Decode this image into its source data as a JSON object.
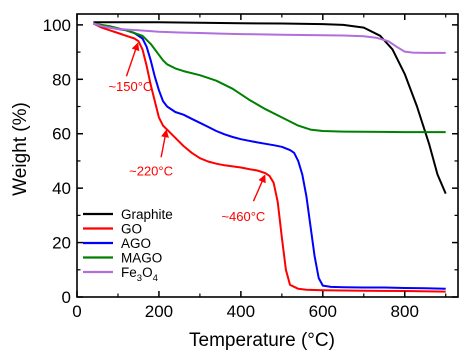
{
  "chart_data": {
    "type": "line",
    "xlabel": "Temperature (°C)",
    "ylabel": "Weight (%)",
    "xlim": [
      0,
      930
    ],
    "ylim": [
      0,
      104
    ],
    "xticks": [
      0,
      200,
      400,
      600,
      800
    ],
    "yticks": [
      0,
      20,
      40,
      60,
      80,
      100
    ],
    "grid": false,
    "legend_position": "bottom-left",
    "series": [
      {
        "name": "Graphite",
        "name_base": "Graphite",
        "name_sub": "",
        "name_tail": "",
        "color": "#000000",
        "x": [
          40,
          100,
          200,
          300,
          400,
          500,
          600,
          650,
          700,
          740,
          770,
          800,
          830,
          860,
          880,
          900
        ],
        "y": [
          101,
          101,
          101,
          100.8,
          100.6,
          100.5,
          100.3,
          100,
          99,
          96,
          91,
          82,
          70,
          56,
          45,
          38
        ]
      },
      {
        "name": "GO",
        "name_base": "GO",
        "name_sub": "",
        "name_tail": "",
        "color": "#ff0000",
        "x": [
          40,
          60,
          80,
          100,
          120,
          140,
          150,
          160,
          170,
          180,
          190,
          200,
          210,
          220,
          240,
          260,
          280,
          300,
          320,
          340,
          360,
          380,
          400,
          420,
          440,
          460,
          470,
          480,
          490,
          500,
          510,
          520,
          540,
          560,
          600,
          700,
          800,
          900
        ],
        "y": [
          100.5,
          99,
          98,
          97,
          96,
          95,
          94,
          91,
          85,
          78,
          72,
          66,
          63,
          61.5,
          58.5,
          55.5,
          53,
          51,
          49.8,
          49,
          48.4,
          48,
          47.6,
          47,
          46.5,
          45.5,
          44.5,
          42,
          35,
          22,
          10,
          4.5,
          3,
          2.7,
          2.5,
          2.3,
          2.2,
          2
        ]
      },
      {
        "name": "AGO",
        "name_base": "AGO",
        "name_sub": "",
        "name_tail": "",
        "color": "#0000ff",
        "x": [
          40,
          60,
          80,
          100,
          120,
          140,
          160,
          170,
          180,
          190,
          200,
          210,
          220,
          240,
          260,
          280,
          300,
          320,
          340,
          360,
          380,
          400,
          420,
          440,
          460,
          480,
          500,
          520,
          530,
          540,
          550,
          560,
          570,
          580,
          590,
          600,
          620,
          650,
          700,
          750,
          800,
          850,
          900
        ],
        "y": [
          100.5,
          99.5,
          99,
          98.5,
          98,
          97,
          95,
          92,
          87,
          81,
          76,
          72,
          70,
          68,
          67,
          65.5,
          64,
          62.5,
          61,
          59.8,
          58.8,
          58,
          57.4,
          56.8,
          56.3,
          55.8,
          55.2,
          54,
          53,
          50,
          45,
          37,
          26,
          15,
          7,
          4.2,
          3.7,
          3.6,
          3.5,
          3.5,
          3.3,
          3.2,
          3
        ]
      },
      {
        "name": "MAGO",
        "name_base": "MAGO",
        "name_sub": "",
        "name_tail": "",
        "color": "#008000",
        "x": [
          40,
          80,
          120,
          160,
          180,
          200,
          210,
          220,
          240,
          260,
          300,
          340,
          380,
          420,
          460,
          500,
          540,
          570,
          600,
          650,
          700,
          800,
          900
        ],
        "y": [
          100.5,
          99.5,
          98,
          96,
          93,
          89,
          87,
          85.5,
          84,
          83,
          81.5,
          79.5,
          76.5,
          72.5,
          69,
          66,
          63,
          61.5,
          61,
          60.8,
          60.7,
          60.6,
          60.6
        ]
      },
      {
        "name": "Fe₃O₄",
        "name_base": "Fe",
        "name_sub": "3",
        "name_tail": "O₄",
        "color": "#b06fdc",
        "x": [
          40,
          60,
          100,
          150,
          200,
          250,
          300,
          350,
          400,
          450,
          500,
          550,
          600,
          650,
          700,
          730,
          760,
          780,
          800,
          820,
          850,
          900
        ],
        "y": [
          100.5,
          99.5,
          98.5,
          98,
          97.5,
          97.2,
          97,
          96.8,
          96.6,
          96.5,
          96.4,
          96.3,
          96.2,
          96.1,
          95.8,
          95.3,
          94,
          92,
          90.2,
          89.8,
          89.7,
          89.7
        ]
      }
    ],
    "annotations": [
      {
        "text": "~150°C",
        "x": 150,
        "y": 94
      },
      {
        "text": "~220°C",
        "x": 220,
        "y": 62
      },
      {
        "text": "~460°C",
        "x": 460,
        "y": 45.5
      }
    ],
    "annotation_color": "#ff0000"
  }
}
